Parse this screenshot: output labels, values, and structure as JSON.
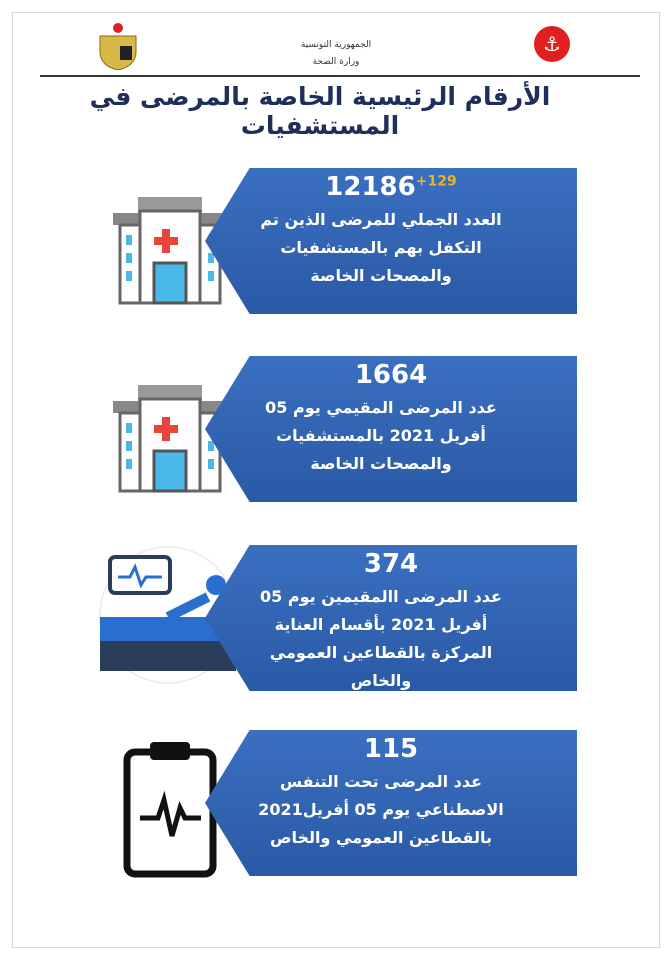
{
  "header": {
    "line1": "الجمهورية التونسية",
    "line2": "وزارة الصحة"
  },
  "title": "الأرقام الرئيسية الخاصة بالمرضى في المستشفيات",
  "cards": [
    {
      "number": "12186",
      "delta": "+129",
      "text": "العدد الجملي للمرضى الذين تم التكفل بهم بالمستشفيات والمصحات الخاصة",
      "icon": "hospital-icon"
    },
    {
      "number": "1664",
      "text": "عدد المرضى المقيمي يوم 05 أفريل 2021 بالمستشفيات والمصحات الخاصة",
      "icon": "hospital-icon"
    },
    {
      "number": "374",
      "text": "عدد المرضى االمقيمين يوم 05 أفريل 2021 بأقسام العناية المركزة بالقطاعين العمومي والخاص",
      "icon": "icu-bed-icon"
    },
    {
      "number": "115",
      "text": "عدد المرضى تحت التنفس الاصطناعي يوم 05 أفريل2021 بالقطاعين العمومي والخاص",
      "icon": "clipboard-heartbeat-icon"
    }
  ],
  "colors": {
    "card": "#2f62b0",
    "delta": "#f0b020",
    "title": "#1f2f5a"
  }
}
